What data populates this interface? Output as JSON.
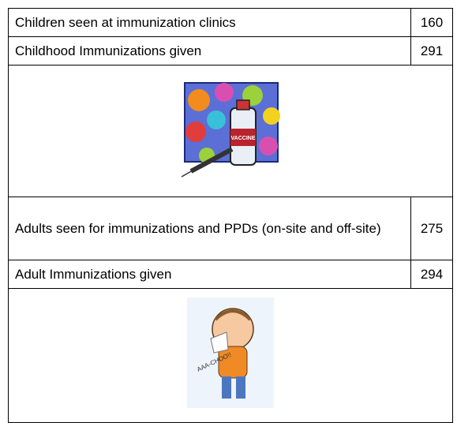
{
  "table": {
    "rows": [
      [
        "Children seen at immunization clinics",
        160
      ],
      [
        "Childhood Immunizations given",
        291
      ],
      [
        "Adults seen for immunizations and PPDs (on-site and off-site)",
        275
      ],
      [
        "Adult Immunizations given",
        294
      ]
    ]
  },
  "images": {
    "vaccine_label": "VACCINE",
    "sneeze_label": "AAA-CHOO!!"
  }
}
